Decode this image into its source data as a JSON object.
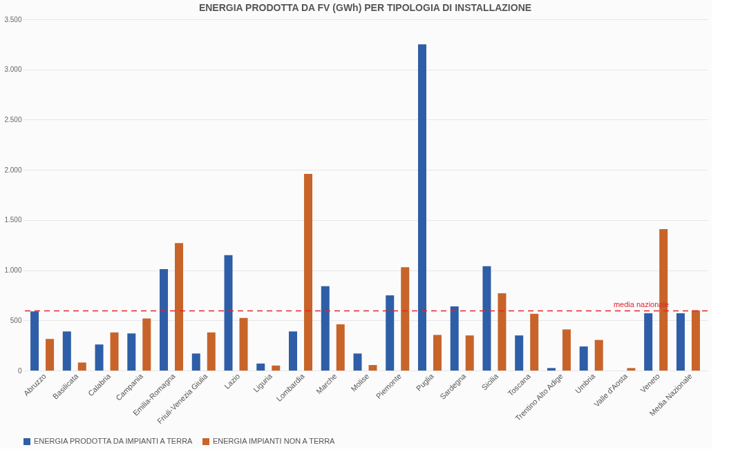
{
  "chart_data": {
    "type": "bar",
    "title": "ENERGIA PRODOTTA DA FV (GWh) PER TIPOLOGIA DI INSTALLAZIONE",
    "categories": [
      "Abruzzo",
      "Basilicata",
      "Calabria",
      "Campania",
      "Emilia-Romagna",
      "Friuli-Venezia Giulia",
      "Lazio",
      "Liguria",
      "Lombardia",
      "Marche",
      "Molise",
      "Piemonte",
      "Puglia",
      "Sardegna",
      "Sicilia",
      "Toscana",
      "Trentino Alto Adige",
      "Umbria",
      "Valle d'Aosta",
      "Veneto",
      "Media Nazionale"
    ],
    "series": [
      {
        "name": "ENERGIA PRODOTTA DA IMPIANTI A TERRA",
        "color": "#2e5ea8",
        "values": [
          590,
          390,
          260,
          370,
          1010,
          170,
          1150,
          70,
          390,
          840,
          170,
          750,
          3250,
          640,
          1040,
          350,
          25,
          240,
          0,
          570,
          570
        ]
      },
      {
        "name": "ENERGIA IMPIANTI NON A TERRA",
        "color": "#c8642a",
        "values": [
          315,
          80,
          380,
          520,
          1270,
          380,
          525,
          50,
          1960,
          460,
          55,
          1030,
          355,
          350,
          770,
          565,
          410,
          305,
          25,
          1410,
          600
        ]
      }
    ],
    "ylim": [
      0,
      3500
    ],
    "yticks": [
      0,
      500,
      {
        "value": 1000,
        "label": "1.000"
      },
      {
        "value": 1500,
        "label": "1.500"
      },
      {
        "value": 2000,
        "label": "2.000"
      },
      {
        "value": 2500,
        "label": "2.500"
      },
      {
        "value": 3000,
        "label": "3.000"
      },
      {
        "value": 3500,
        "label": "3.500"
      }
    ],
    "grid": "y",
    "legend": "bottom",
    "ref_lines": [
      {
        "axis": "y",
        "value": 594,
        "label": "media nazionale",
        "color": "#e8202a",
        "line_style": "dashed"
      }
    ]
  }
}
